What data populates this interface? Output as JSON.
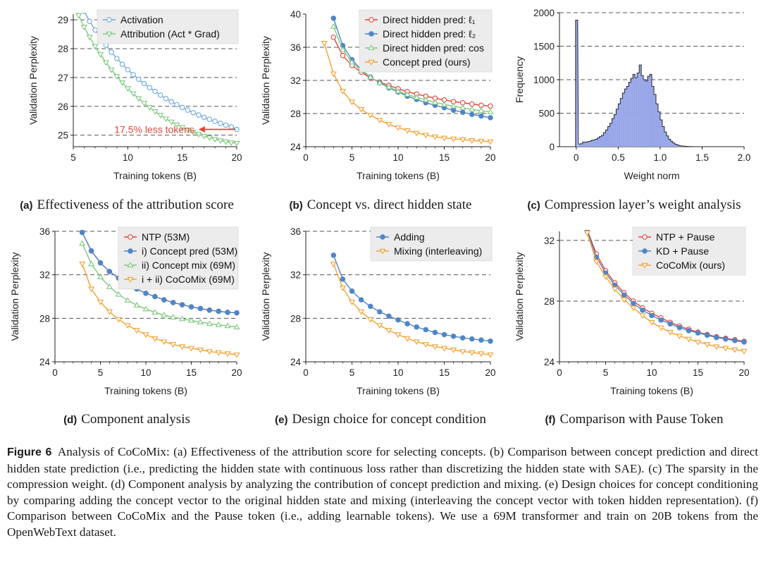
{
  "colors": {
    "blue": "#4f86c6",
    "light_blue": "#6fa8dc",
    "green": "#7fc97f",
    "orange": "#f5a030",
    "red": "#e0453a",
    "hist_fill": "#97a6e8",
    "hist_edge": "#2b2b2b",
    "grid": "#555555"
  },
  "figure": {
    "label": "Figure 6",
    "caption": "Analysis of CoCoMix: (a) Effectiveness of the attribution score for selecting concepts. (b) Comparison between concept prediction and direct hidden state prediction (i.e., predicting the hidden state with continuous loss rather than discretizing the hidden state with SAE). (c) The sparsity in the compression weight. (d) Component analysis by analyzing the contribution of concept prediction and mixing. (e) Design choices for concept conditioning by comparing adding the concept vector to the original hidden state and mixing (interleaving the concept vector with token hidden representation). (f) Comparison between CoCoMix and the Pause token (i.e., adding learnable tokens). We use a 69M transformer and train on 20B tokens from the OpenWebText dataset."
  },
  "panels": [
    {
      "tag": "(a)",
      "caption": "Effectiveness of the attribution score"
    },
    {
      "tag": "(b)",
      "caption": "Concept vs. direct hidden state"
    },
    {
      "tag": "(c)",
      "caption": "Compression layer’s weight analysis"
    },
    {
      "tag": "(d)",
      "caption": "Component analysis"
    },
    {
      "tag": "(e)",
      "caption": "Design choice for concept condition"
    },
    {
      "tag": "(f)",
      "caption": "Comparison with Pause Token"
    }
  ],
  "chart_data": [
    {
      "id": "a",
      "type": "line",
      "xlabel": "Training tokens (B)",
      "ylabel": "Validation Perplexity",
      "xlim": [
        5,
        20
      ],
      "ylim": [
        24.6,
        29.2
      ],
      "xticks": [
        5,
        10,
        15,
        20
      ],
      "yticks": [
        25,
        26,
        27,
        28,
        29
      ],
      "grid_y": [
        25,
        26,
        27,
        28,
        29
      ],
      "legend_position": "top-right",
      "series": [
        {
          "name": "Activation",
          "color": "#6fa8dc",
          "marker": "circle",
          "x": [
            5,
            5.5,
            6,
            6.5,
            7,
            7.5,
            8,
            8.5,
            9,
            9.5,
            10,
            10.5,
            11,
            11.5,
            12,
            12.5,
            13,
            13.5,
            14,
            14.5,
            15,
            15.5,
            16,
            16.5,
            17,
            17.5,
            18,
            18.5,
            19,
            19.5,
            20
          ],
          "y": [
            30.2,
            29.7,
            29.3,
            28.95,
            28.65,
            28.38,
            28.12,
            27.88,
            27.66,
            27.46,
            27.27,
            27.1,
            26.94,
            26.79,
            26.65,
            26.52,
            26.39,
            26.27,
            26.16,
            26.06,
            25.96,
            25.87,
            25.78,
            25.7,
            25.62,
            25.55,
            25.48,
            25.41,
            25.35,
            25.29,
            25.2
          ]
        },
        {
          "name": "Attribution (Act * Grad)",
          "color": "#7fc97f",
          "marker": "triangle-down",
          "x": [
            5,
            5.5,
            6,
            6.5,
            7,
            7.5,
            8,
            8.5,
            9,
            9.5,
            10,
            10.5,
            11,
            11.5,
            12,
            12.5,
            13,
            13.5,
            14,
            14.5,
            15,
            15.5,
            16,
            16.5,
            17,
            17.5,
            18,
            18.5,
            19,
            19.5,
            20
          ],
          "y": [
            29.6,
            29.15,
            28.75,
            28.4,
            28.08,
            27.8,
            27.52,
            27.27,
            27.04,
            26.82,
            26.62,
            26.44,
            26.27,
            26.11,
            25.96,
            25.82,
            25.69,
            25.57,
            25.46,
            25.36,
            25.27,
            25.18,
            25.1,
            25.03,
            24.97,
            24.91,
            24.86,
            24.81,
            24.77,
            24.74,
            24.72
          ]
        }
      ],
      "annotation": {
        "text": "17.5% less tokens",
        "color": "#e0453a",
        "arrow_from_x": 20,
        "arrow_to_x": 16.5,
        "y": 25.2
      }
    },
    {
      "id": "b",
      "type": "line",
      "xlabel": "Training tokens (B)",
      "ylabel": "Validation Perplexity",
      "xlim": [
        0,
        20
      ],
      "ylim": [
        24,
        40
      ],
      "xticks": [
        0,
        5,
        10,
        15,
        20
      ],
      "yticks": [
        24,
        28,
        32,
        36,
        40
      ],
      "grid_y": [
        28,
        32,
        36
      ],
      "legend_position": "top-right",
      "series": [
        {
          "name": "Direct hidden pred: ℓ₁",
          "color": "#e0453a",
          "marker": "circle",
          "x": [
            3,
            4,
            5,
            6,
            7,
            8,
            9,
            10,
            11,
            12,
            13,
            14,
            15,
            16,
            17,
            18,
            19,
            20
          ],
          "y": [
            37.2,
            35.0,
            33.8,
            33.0,
            32.3,
            31.8,
            31.4,
            31.0,
            30.65,
            30.35,
            30.1,
            29.85,
            29.65,
            29.45,
            29.3,
            29.15,
            29.0,
            28.9
          ]
        },
        {
          "name": "Direct hidden pred: ℓ₂",
          "color": "#4f86c6",
          "marker": "circle",
          "x": [
            3,
            4,
            5,
            6,
            7,
            8,
            9,
            10,
            11,
            12,
            13,
            14,
            15,
            16,
            17,
            18,
            19,
            20
          ],
          "y": [
            39.5,
            36.2,
            34.5,
            33.3,
            32.4,
            31.7,
            31.1,
            30.6,
            30.1,
            29.7,
            29.3,
            29.0,
            28.7,
            28.4,
            28.15,
            27.9,
            27.7,
            27.5
          ]
        },
        {
          "name": "Direct hidden pred: cos",
          "color": "#7fc97f",
          "marker": "triangle-up",
          "x": [
            3,
            4,
            5,
            6,
            7,
            8,
            9,
            10,
            11,
            12,
            13,
            14,
            15,
            16,
            17,
            18,
            19,
            20
          ],
          "y": [
            38.5,
            35.7,
            34.2,
            33.2,
            32.4,
            31.7,
            31.2,
            30.7,
            30.3,
            29.95,
            29.65,
            29.35,
            29.1,
            28.9,
            28.7,
            28.5,
            28.35,
            28.2
          ]
        },
        {
          "name": "Concept pred (ours)",
          "color": "#f5a030",
          "marker": "triangle-down",
          "x": [
            2,
            3,
            4,
            5,
            6,
            7,
            8,
            9,
            10,
            11,
            12,
            13,
            14,
            15,
            16,
            17,
            18,
            19,
            20
          ],
          "y": [
            36.5,
            32.8,
            30.7,
            29.4,
            28.5,
            27.8,
            27.2,
            26.7,
            26.3,
            25.95,
            25.65,
            25.4,
            25.2,
            25.05,
            24.95,
            24.85,
            24.75,
            24.68,
            24.6
          ]
        }
      ]
    },
    {
      "id": "c",
      "type": "bar",
      "subtype": "histogram",
      "xlabel": "Weight norm",
      "ylabel": "Frequency",
      "xlim": [
        -0.2,
        2.0
      ],
      "ylim": [
        0,
        2000
      ],
      "xticks": [
        0,
        0.5,
        1.0,
        1.5,
        2.0
      ],
      "xtick_labels": [
        "0",
        "0.5",
        "1.0",
        "1.5",
        "2.0"
      ],
      "yticks": [
        0,
        500,
        1000,
        1500,
        2000
      ],
      "grid_y": [
        500,
        1000,
        1500,
        2000
      ],
      "bin_width": 0.025,
      "bins_start": 0,
      "values": [
        1890,
        40,
        45,
        70,
        65,
        75,
        80,
        95,
        100,
        110,
        130,
        150,
        170,
        210,
        250,
        300,
        350,
        420,
        480,
        560,
        640,
        720,
        800,
        860,
        900,
        960,
        1020,
        1080,
        1030,
        1100,
        1220,
        1060,
        1000,
        980,
        1050,
        1080,
        900,
        780,
        640,
        520,
        400,
        300,
        220,
        160,
        110,
        80,
        55,
        35,
        25,
        15,
        10,
        8,
        5,
        3,
        2,
        1
      ]
    },
    {
      "id": "d",
      "type": "line",
      "xlabel": "Training tokens (B)",
      "ylabel": "Validation Perplexity",
      "xlim": [
        0,
        20
      ],
      "ylim": [
        24,
        36
      ],
      "xticks": [
        0,
        5,
        10,
        15,
        20
      ],
      "yticks": [
        24,
        28,
        32,
        36
      ],
      "grid_y": [
        28,
        32,
        36
      ],
      "legend_position": "top-right",
      "series": [
        {
          "name": "NTP (53M)",
          "color": "#e0453a",
          "marker": "circle",
          "x": [
            3,
            4,
            5,
            6,
            7,
            8,
            9,
            10,
            11,
            12,
            13,
            14,
            15,
            16,
            17,
            18,
            19,
            20
          ],
          "y": [
            35.9,
            34.2,
            33.1,
            32.3,
            31.7,
            31.1,
            30.7,
            30.3,
            30.0,
            29.7,
            29.45,
            29.25,
            29.05,
            28.9,
            28.75,
            28.65,
            28.55,
            28.5
          ]
        },
        {
          "name": "i) Concept pred (53M)",
          "color": "#4f86c6",
          "marker": "circle",
          "x": [
            3,
            4,
            5,
            6,
            7,
            8,
            9,
            10,
            11,
            12,
            13,
            14,
            15,
            16,
            17,
            18,
            19,
            20
          ],
          "y": [
            35.9,
            34.2,
            33.1,
            32.3,
            31.7,
            31.1,
            30.7,
            30.3,
            30.0,
            29.7,
            29.45,
            29.25,
            29.05,
            28.9,
            28.75,
            28.65,
            28.55,
            28.5
          ]
        },
        {
          "name": "ii) Concept mix (69M)",
          "color": "#7fc97f",
          "marker": "triangle-up",
          "x": [
            3,
            4,
            5,
            6,
            7,
            8,
            9,
            10,
            11,
            12,
            13,
            14,
            15,
            16,
            17,
            18,
            19,
            20
          ],
          "y": [
            34.9,
            33.0,
            31.8,
            30.9,
            30.2,
            29.65,
            29.2,
            28.85,
            28.55,
            28.3,
            28.1,
            27.95,
            27.8,
            27.65,
            27.5,
            27.4,
            27.3,
            27.2
          ]
        },
        {
          "name": "i + ii) CoCoMix (69M)",
          "color": "#f5a030",
          "marker": "triangle-down",
          "x": [
            3,
            4,
            5,
            6,
            7,
            8,
            9,
            10,
            11,
            12,
            13,
            14,
            15,
            16,
            17,
            18,
            19,
            20
          ],
          "y": [
            33.0,
            30.7,
            29.5,
            28.6,
            27.9,
            27.35,
            26.9,
            26.5,
            26.15,
            25.85,
            25.6,
            25.4,
            25.25,
            25.1,
            24.95,
            24.85,
            24.75,
            24.65
          ]
        }
      ]
    },
    {
      "id": "e",
      "type": "line",
      "xlabel": "Training tokens (B)",
      "ylabel": "Validation Perplexity",
      "xlim": [
        0,
        20
      ],
      "ylim": [
        24,
        36
      ],
      "xticks": [
        0,
        5,
        10,
        15,
        20
      ],
      "yticks": [
        24,
        28,
        32,
        36
      ],
      "grid_y": [
        28,
        32,
        36
      ],
      "legend_position": "top-right",
      "series": [
        {
          "name": "Adding",
          "color": "#4f86c6",
          "marker": "circle",
          "x": [
            3,
            4,
            5,
            6,
            7,
            8,
            9,
            10,
            11,
            12,
            13,
            14,
            15,
            16,
            17,
            18,
            19,
            20
          ],
          "y": [
            33.8,
            31.6,
            30.5,
            29.7,
            29.1,
            28.6,
            28.2,
            27.85,
            27.5,
            27.2,
            26.95,
            26.7,
            26.5,
            26.35,
            26.2,
            26.1,
            26.0,
            25.9
          ]
        },
        {
          "name": "Mixing (interleaving)",
          "color": "#f5a030",
          "marker": "triangle-down",
          "x": [
            3,
            4,
            5,
            6,
            7,
            8,
            9,
            10,
            11,
            12,
            13,
            14,
            15,
            16,
            17,
            18,
            19,
            20
          ],
          "y": [
            33.0,
            30.8,
            29.5,
            28.6,
            27.9,
            27.35,
            26.9,
            26.5,
            26.15,
            25.85,
            25.6,
            25.4,
            25.25,
            25.1,
            24.95,
            24.85,
            24.75,
            24.65
          ]
        }
      ]
    },
    {
      "id": "f",
      "type": "line",
      "xlabel": "Training tokens (B)",
      "ylabel": "Validation Perplexity",
      "xlim": [
        0,
        20
      ],
      "ylim": [
        24,
        32.6
      ],
      "xticks": [
        0,
        5,
        10,
        15,
        20
      ],
      "yticks": [
        24,
        28,
        32
      ],
      "grid_y": [
        28,
        32
      ],
      "legend_position": "top-right",
      "series": [
        {
          "name": "NTP + Pause",
          "color": "#e0453a",
          "marker": "circle",
          "x": [
            3,
            4,
            5,
            6,
            7,
            8,
            9,
            10,
            11,
            12,
            13,
            14,
            15,
            16,
            17,
            18,
            19,
            20
          ],
          "y": [
            32.7,
            31.1,
            30.0,
            29.2,
            28.55,
            28.0,
            27.55,
            27.2,
            26.9,
            26.6,
            26.35,
            26.15,
            25.95,
            25.8,
            25.65,
            25.55,
            25.45,
            25.35
          ]
        },
        {
          "name": "KD + Pause",
          "color": "#4f86c6",
          "marker": "circle",
          "x": [
            3,
            4,
            5,
            6,
            7,
            8,
            9,
            10,
            11,
            12,
            13,
            14,
            15,
            16,
            17,
            18,
            19,
            20
          ],
          "y": [
            32.6,
            30.9,
            29.85,
            29.05,
            28.4,
            27.85,
            27.4,
            27.05,
            26.75,
            26.5,
            26.25,
            26.05,
            25.9,
            25.75,
            25.6,
            25.5,
            25.4,
            25.3
          ]
        },
        {
          "name": "CoCoMix (ours)",
          "color": "#f5a030",
          "marker": "triangle-down",
          "x": [
            3,
            4,
            5,
            6,
            7,
            8,
            9,
            10,
            11,
            12,
            13,
            14,
            15,
            16,
            17,
            18,
            19,
            20
          ],
          "y": [
            32.5,
            30.6,
            29.6,
            28.8,
            28.1,
            27.55,
            27.05,
            26.6,
            26.25,
            25.95,
            25.7,
            25.5,
            25.3,
            25.15,
            25.0,
            24.9,
            24.8,
            24.7
          ]
        }
      ]
    }
  ]
}
